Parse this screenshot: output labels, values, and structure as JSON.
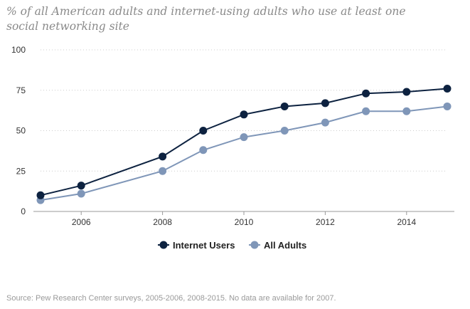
{
  "title": "% of all American adults and internet-using adults who use at least one social networking site",
  "source": "Source: Pew Research Center surveys, 2005-2006, 2008-2015. No data are available for 2007.",
  "chart_data": {
    "type": "line",
    "title": "% of all American adults and internet-using adults who use at least one social networking site",
    "xlabel": "",
    "ylabel": "",
    "xlim": [
      2005,
      2015
    ],
    "ylim": [
      0,
      100
    ],
    "yticks": [
      "0",
      "25",
      "50",
      "75",
      "100"
    ],
    "xticks": [
      "2006",
      "2008",
      "2010",
      "2012",
      "2014"
    ],
    "grid": true,
    "legend_position": "bottom-center",
    "series": [
      {
        "name": "Internet Users",
        "color": "#0d2240",
        "x": [
          2005,
          2006,
          2008,
          2009,
          2010,
          2011,
          2012,
          2013,
          2014,
          2015
        ],
        "values": [
          10,
          16,
          34,
          50,
          60,
          65,
          67,
          73,
          74,
          76
        ]
      },
      {
        "name": "All Adults",
        "color": "#7f96b8",
        "x": [
          2005,
          2006,
          2008,
          2009,
          2010,
          2011,
          2012,
          2013,
          2014,
          2015
        ],
        "values": [
          7,
          11,
          25,
          38,
          46,
          50,
          55,
          62,
          62,
          65
        ]
      }
    ]
  }
}
